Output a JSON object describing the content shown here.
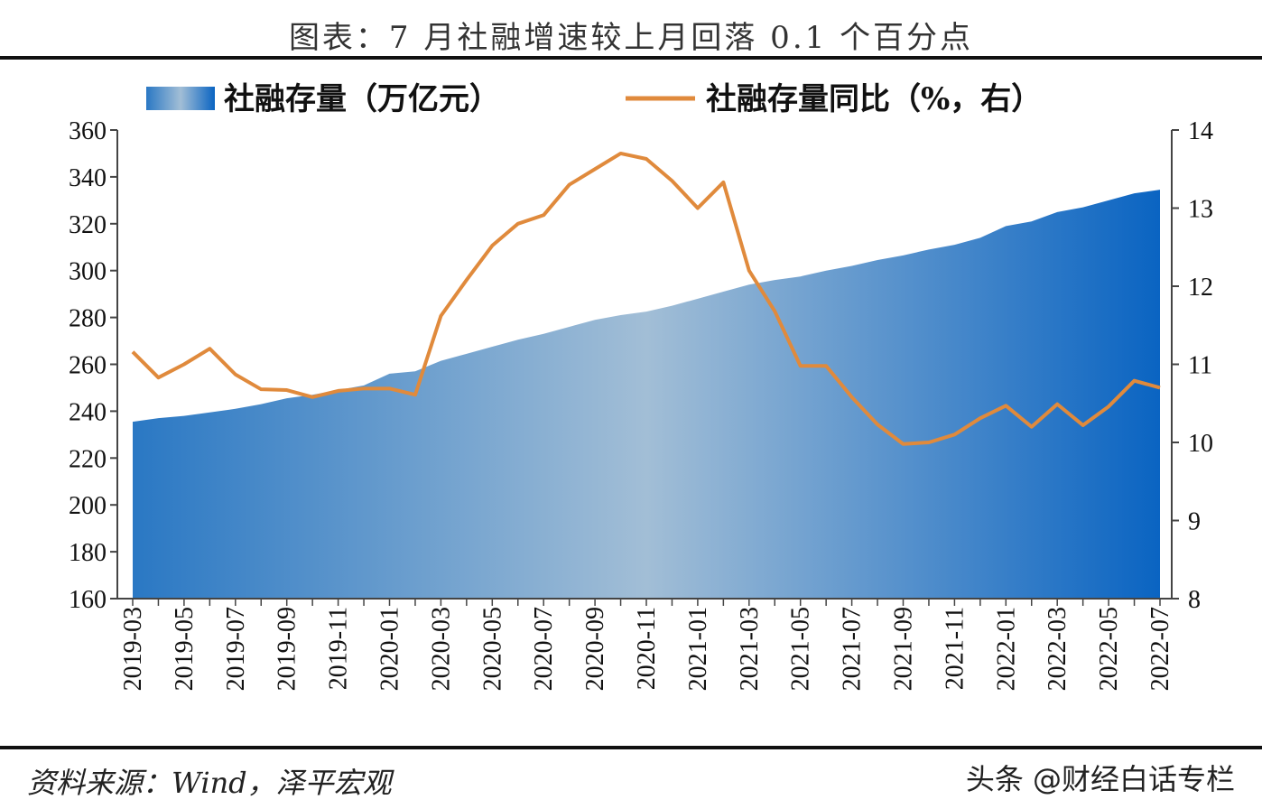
{
  "title": "图表：7 月社融增速较上月回落 0.1 个百分点",
  "source": "资料来源：Wind，泽平宏观",
  "watermark": "头条 @财经白话专栏",
  "chart_data": {
    "type": "area+line",
    "title": "图表：7 月社融增速较上月回落 0.1 个百分点",
    "legend_placement": "top",
    "grid": false,
    "x": [
      "2019-03",
      "2019-04",
      "2019-05",
      "2019-06",
      "2019-07",
      "2019-08",
      "2019-09",
      "2019-10",
      "2019-11",
      "2019-12",
      "2020-01",
      "2020-02",
      "2020-03",
      "2020-04",
      "2020-05",
      "2020-06",
      "2020-07",
      "2020-08",
      "2020-09",
      "2020-10",
      "2020-11",
      "2020-12",
      "2021-01",
      "2021-02",
      "2021-03",
      "2021-04",
      "2021-05",
      "2021-06",
      "2021-07",
      "2021-08",
      "2021-09",
      "2021-10",
      "2021-11",
      "2021-12",
      "2022-01",
      "2022-02",
      "2022-03",
      "2022-04",
      "2022-05",
      "2022-06",
      "2022-07"
    ],
    "x_tick_labels": [
      "2019-03",
      "2019-05",
      "2019-07",
      "2019-09",
      "2019-11",
      "2020-01",
      "2020-03",
      "2020-05",
      "2020-07",
      "2020-09",
      "2020-11",
      "2021-01",
      "2021-03",
      "2021-05",
      "2021-07",
      "2021-09",
      "2021-11",
      "2022-01",
      "2022-03",
      "2022-05",
      "2022-07"
    ],
    "left_axis": {
      "ylim": [
        160,
        360
      ],
      "ticks": [
        160,
        180,
        200,
        220,
        240,
        260,
        280,
        300,
        320,
        340,
        360
      ]
    },
    "right_axis": {
      "ylim": [
        8,
        14
      ],
      "ticks": [
        8,
        9,
        10,
        11,
        12,
        13,
        14
      ]
    },
    "series": [
      {
        "name": "社融存量（万亿元）",
        "type": "area",
        "axis": "left",
        "color": "#1a6fc0",
        "values": [
          235.5,
          237,
          238,
          239.5,
          241,
          243,
          245.5,
          247,
          249,
          251,
          256,
          257,
          261.5,
          264.5,
          267.5,
          270.5,
          273,
          276,
          279,
          281,
          282.5,
          285,
          288,
          291,
          294,
          296,
          297.5,
          300,
          302,
          304.5,
          306.5,
          309,
          311,
          314,
          319,
          321,
          325,
          327,
          330,
          333,
          334.5
        ]
      },
      {
        "name": "社融存量同比（%，右）",
        "type": "line",
        "axis": "right",
        "color": "#e08a3c",
        "values": [
          11.16,
          10.83,
          11.0,
          11.2,
          10.87,
          10.68,
          10.67,
          10.58,
          10.66,
          10.69,
          10.69,
          10.61,
          11.62,
          12.08,
          12.52,
          12.8,
          12.91,
          13.3,
          13.5,
          13.7,
          13.63,
          13.35,
          13.0,
          13.33,
          12.2,
          11.68,
          10.98,
          10.98,
          10.58,
          10.23,
          9.98,
          10.0,
          10.1,
          10.31,
          10.47,
          10.2,
          10.49,
          10.22,
          10.46,
          10.79,
          10.7
        ]
      }
    ]
  }
}
